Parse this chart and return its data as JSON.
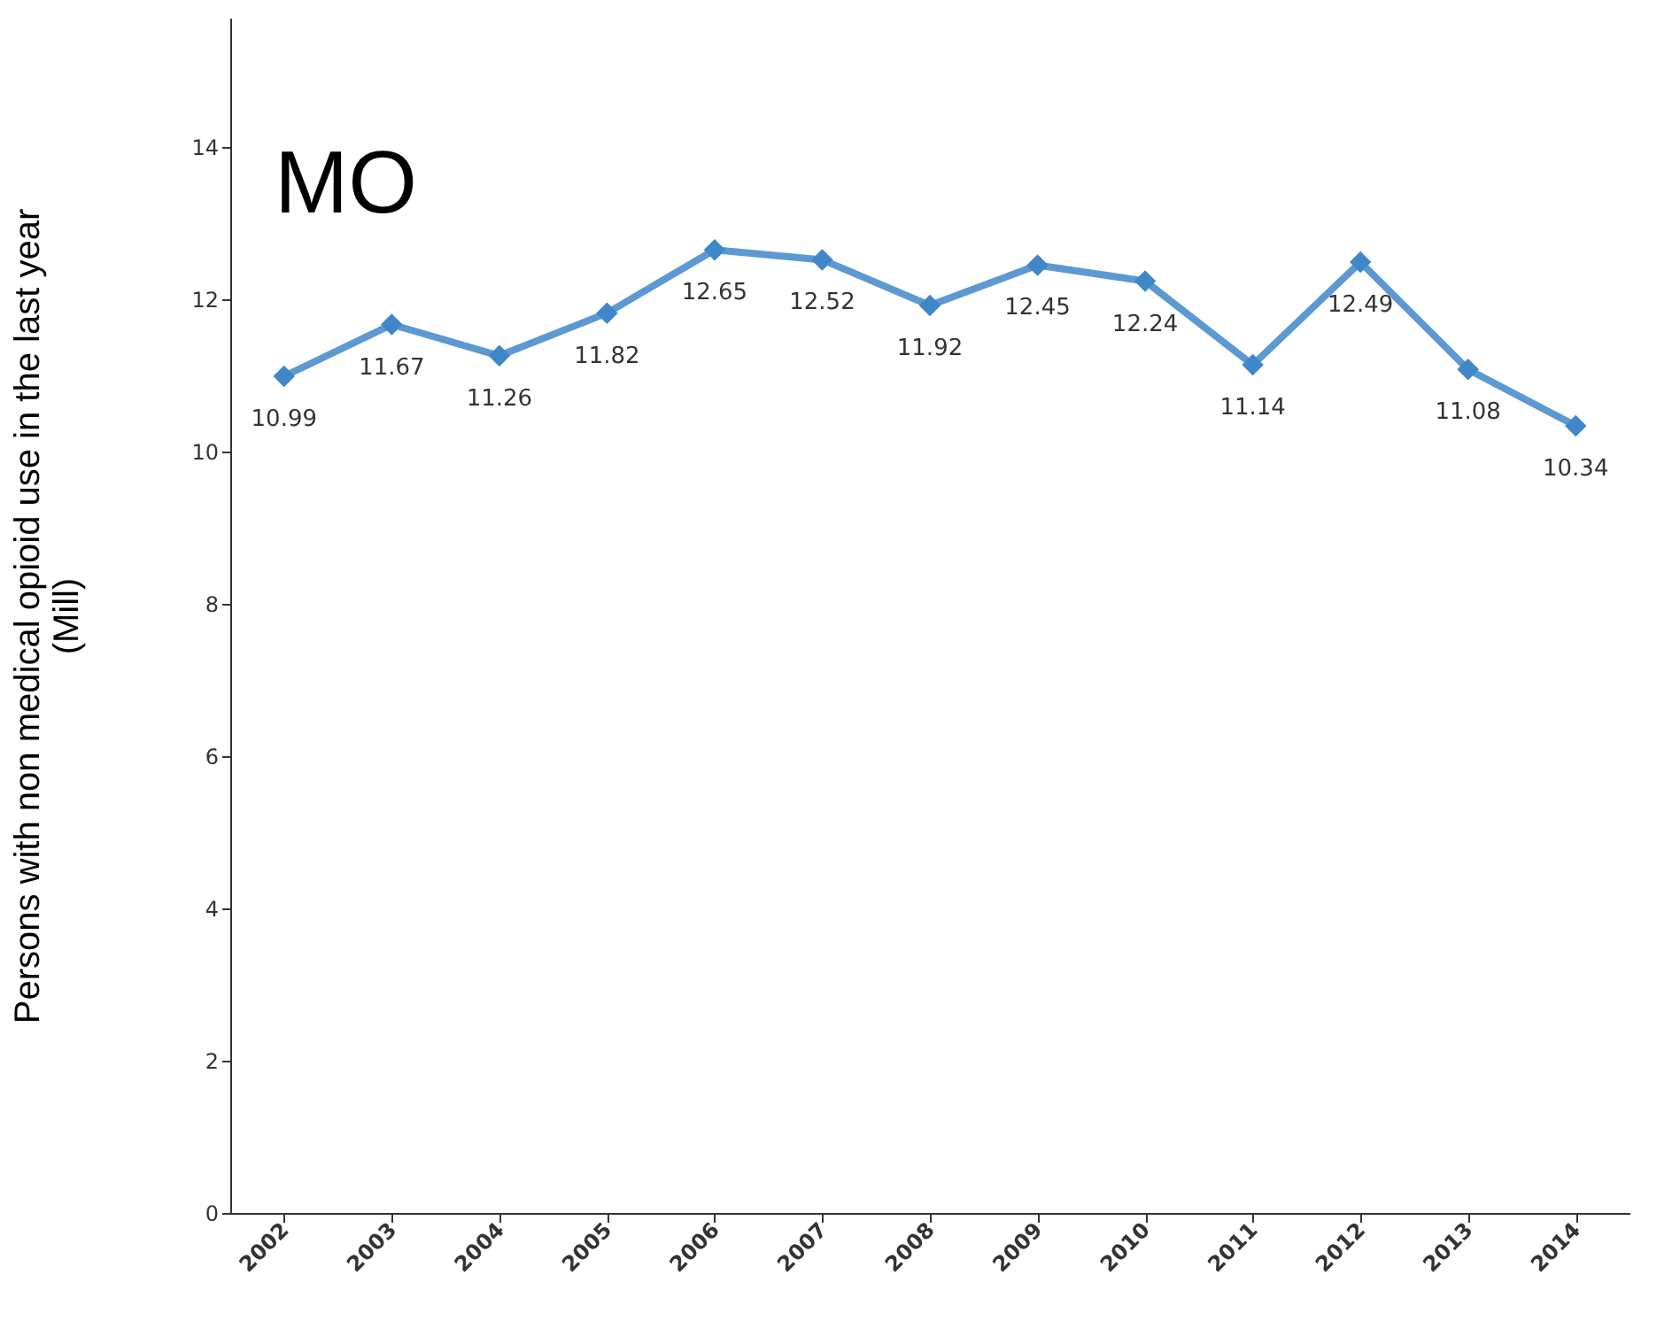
{
  "chart_data": {
    "type": "line",
    "title": "MO",
    "ylabel": "Persons with non medical opioid use in the last year\n(Mill)",
    "categories": [
      "2002",
      "2003",
      "2004",
      "2005",
      "2006",
      "2007",
      "2008",
      "2009",
      "2010",
      "2011",
      "2012",
      "2013",
      "2014"
    ],
    "series": [
      {
        "color": "#3f87c9",
        "values": [
          10.99,
          11.67,
          11.26,
          11.82,
          12.65,
          12.52,
          11.92,
          12.45,
          12.24,
          11.14,
          12.49,
          11.08,
          10.34
        ]
      }
    ],
    "ylim": [
      0,
      15.7
    ],
    "yticks": [
      0,
      2,
      4,
      6,
      8,
      10,
      12,
      14
    ],
    "grid": false,
    "marker": "diamond",
    "line_style": "solid",
    "data_labels": true
  }
}
